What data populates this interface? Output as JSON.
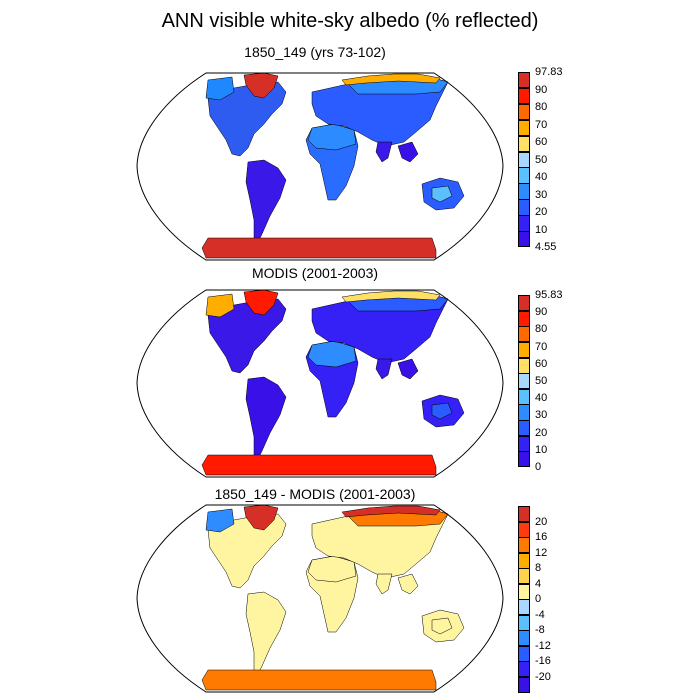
{
  "figure": {
    "title": "ANN visible white-sky albedo (% reflected)"
  },
  "colors": {
    "land_outline": "#000000",
    "globe_outline": "#000000"
  },
  "panels": [
    {
      "title": "1850_149 (yrs 73-102)",
      "colorbar": {
        "labels": [
          "97.83",
          "90",
          "80",
          "70",
          "60",
          "50",
          "40",
          "30",
          "20",
          "10",
          "4.55"
        ],
        "colors": [
          "#d62f27",
          "#ff1a00",
          "#ff6a00",
          "#ffae00",
          "#ffe066",
          "#a8d8ff",
          "#5cc0ff",
          "#2f8cff",
          "#2a5cff",
          "#3520f5",
          "#3a10e8"
        ]
      },
      "regions": {
        "greenland": "#d62f27",
        "north_america": "#2f5cf0",
        "alaska": "#1f88ff",
        "south_america": "#3a18e8",
        "africa": "#2a6cff",
        "sahara": "#2c8cff",
        "europe_asia": "#2a5cff",
        "siberia": "#2c8cff",
        "arctic_coast": "#ffae00",
        "australia": "#2a5cff",
        "australia_interior": "#5cc0ff",
        "antarctica": "#d62f27",
        "india": "#3a18e8",
        "se_asia": "#3a10e8"
      }
    },
    {
      "title": "MODIS (2001-2003)",
      "colorbar": {
        "labels": [
          "95.83",
          "90",
          "80",
          "70",
          "60",
          "50",
          "40",
          "30",
          "20",
          "10",
          "0"
        ],
        "colors": [
          "#d62f27",
          "#ff1a00",
          "#ff6a00",
          "#ffae00",
          "#ffe066",
          "#a8d8ff",
          "#5cc0ff",
          "#2f8cff",
          "#2a5cff",
          "#3520f5",
          "#3a10e8"
        ]
      },
      "regions": {
        "greenland": "#ff1a00",
        "north_america": "#3a18e8",
        "alaska": "#ffae00",
        "south_america": "#3a10e8",
        "africa": "#3520f5",
        "sahara": "#2f8cff",
        "europe_asia": "#3520f5",
        "siberia": "#2a5cff",
        "arctic_coast": "#ffe066",
        "australia": "#3520f5",
        "australia_interior": "#2a5cff",
        "antarctica": "#ff1a00",
        "india": "#3a18e8",
        "se_asia": "#3a10e8"
      }
    },
    {
      "title": "1850_149 - MODIS (2001-2003)",
      "colorbar": {
        "labels": [
          "20",
          "16",
          "12",
          "8",
          "4",
          "0",
          "-4",
          "-8",
          "-12",
          "-16",
          "-20"
        ],
        "colors": [
          "#d62f27",
          "#ff3a10",
          "#ff7a00",
          "#ffae00",
          "#ffd24d",
          "#fff4a0",
          "#a8d8ff",
          "#5cc0ff",
          "#2f8cff",
          "#2a5cff",
          "#3520f5",
          "#3a10e8"
        ]
      },
      "regions": {
        "greenland": "#d62f27",
        "north_america": "#fff4a0",
        "alaska": "#2f8cff",
        "south_america": "#fff4a0",
        "africa": "#fff4a0",
        "sahara": "#fff4a0",
        "europe_asia": "#fff4a0",
        "siberia": "#ff7a00",
        "arctic_coast": "#d62f27",
        "australia": "#fff4a0",
        "australia_interior": "#fff4a0",
        "antarctica": "#ff7a00",
        "india": "#fff4a0",
        "se_asia": "#fff4a0"
      }
    }
  ]
}
